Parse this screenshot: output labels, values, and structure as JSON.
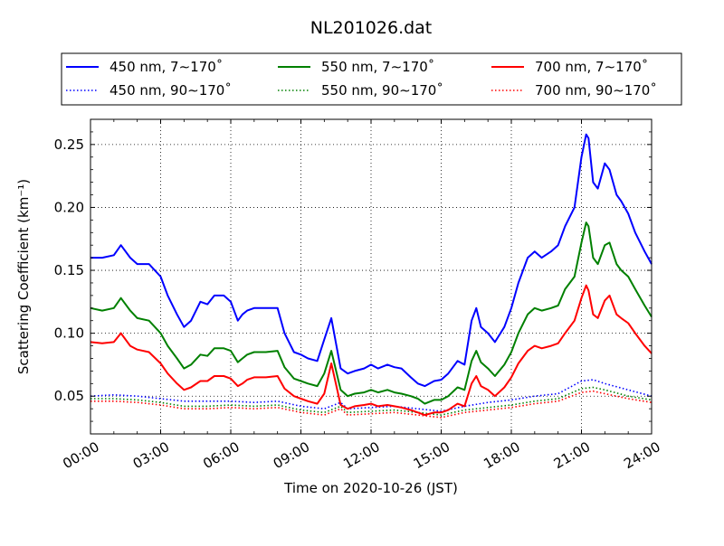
{
  "chart_data": {
    "type": "line",
    "title": "NL201026.dat",
    "xlabel": "Time on 2020-10-26 (JST)",
    "ylabel": "Scattering Coefficient (km⁻¹)",
    "x_unit": "hours",
    "xlim": [
      0,
      24
    ],
    "ylim": [
      0.02,
      0.27
    ],
    "x_ticks": [
      0,
      3,
      6,
      9,
      12,
      15,
      18,
      21,
      24
    ],
    "x_tick_labels": [
      "00:00",
      "03:00",
      "06:00",
      "09:00",
      "12:00",
      "15:00",
      "18:00",
      "21:00",
      "24:00"
    ],
    "y_ticks": [
      0.05,
      0.1,
      0.15,
      0.2,
      0.25
    ],
    "y_tick_labels": [
      "0.05",
      "0.10",
      "0.15",
      "0.20",
      "0.25"
    ],
    "grid": true,
    "legend_position": "top, above plot, 3 columns",
    "series": [
      {
        "name": "450 nm, 7∼170˚",
        "color": "#0000ff",
        "style": "solid",
        "x": [
          0,
          0.5,
          1,
          1.3,
          1.7,
          2,
          2.5,
          3,
          3.3,
          3.7,
          4,
          4.3,
          4.7,
          5,
          5.3,
          5.7,
          6,
          6.3,
          6.5,
          6.7,
          7,
          7.5,
          8,
          8.3,
          8.7,
          9,
          9.3,
          9.7,
          10,
          10.3,
          10.7,
          11,
          11.3,
          11.7,
          12,
          12.3,
          12.7,
          13,
          13.3,
          13.7,
          14,
          14.3,
          14.7,
          15,
          15.3,
          15.7,
          16,
          16.3,
          16.5,
          16.7,
          17,
          17.3,
          17.7,
          18,
          18.3,
          18.7,
          19,
          19.3,
          19.7,
          20,
          20.3,
          20.7,
          21,
          21.2,
          21.3,
          21.5,
          21.7,
          22,
          22.2,
          22.5,
          22.7,
          23,
          23.3,
          23.7,
          24
        ],
        "y": [
          0.16,
          0.16,
          0.162,
          0.17,
          0.16,
          0.155,
          0.155,
          0.145,
          0.13,
          0.115,
          0.105,
          0.11,
          0.125,
          0.123,
          0.13,
          0.13,
          0.125,
          0.11,
          0.115,
          0.118,
          0.12,
          0.12,
          0.12,
          0.1,
          0.085,
          0.083,
          0.08,
          0.078,
          0.095,
          0.112,
          0.072,
          0.068,
          0.07,
          0.072,
          0.075,
          0.072,
          0.075,
          0.073,
          0.072,
          0.065,
          0.06,
          0.058,
          0.062,
          0.063,
          0.068,
          0.078,
          0.075,
          0.11,
          0.12,
          0.105,
          0.1,
          0.093,
          0.105,
          0.12,
          0.14,
          0.16,
          0.165,
          0.16,
          0.165,
          0.17,
          0.185,
          0.2,
          0.24,
          0.258,
          0.255,
          0.22,
          0.215,
          0.235,
          0.23,
          0.21,
          0.205,
          0.195,
          0.18,
          0.165,
          0.155
        ]
      },
      {
        "name": "550 nm, 7∼170˚",
        "color": "#008000",
        "style": "solid",
        "x": [
          0,
          0.5,
          1,
          1.3,
          1.7,
          2,
          2.5,
          3,
          3.3,
          3.7,
          4,
          4.3,
          4.7,
          5,
          5.3,
          5.7,
          6,
          6.3,
          6.5,
          6.7,
          7,
          7.5,
          8,
          8.3,
          8.7,
          9,
          9.3,
          9.7,
          10,
          10.3,
          10.7,
          11,
          11.3,
          11.7,
          12,
          12.3,
          12.7,
          13,
          13.3,
          13.7,
          14,
          14.3,
          14.7,
          15,
          15.3,
          15.7,
          16,
          16.3,
          16.5,
          16.7,
          17,
          17.3,
          17.7,
          18,
          18.3,
          18.7,
          19,
          19.3,
          19.7,
          20,
          20.3,
          20.7,
          21,
          21.2,
          21.3,
          21.5,
          21.7,
          22,
          22.2,
          22.5,
          22.7,
          23,
          23.3,
          23.7,
          24
        ],
        "y": [
          0.12,
          0.118,
          0.12,
          0.128,
          0.118,
          0.112,
          0.11,
          0.1,
          0.09,
          0.08,
          0.072,
          0.075,
          0.083,
          0.082,
          0.088,
          0.088,
          0.086,
          0.077,
          0.08,
          0.083,
          0.085,
          0.085,
          0.086,
          0.073,
          0.064,
          0.062,
          0.06,
          0.058,
          0.068,
          0.086,
          0.055,
          0.05,
          0.052,
          0.053,
          0.055,
          0.053,
          0.055,
          0.053,
          0.052,
          0.05,
          0.048,
          0.044,
          0.047,
          0.047,
          0.05,
          0.057,
          0.055,
          0.078,
          0.086,
          0.077,
          0.072,
          0.066,
          0.075,
          0.085,
          0.1,
          0.115,
          0.12,
          0.118,
          0.12,
          0.122,
          0.135,
          0.145,
          0.172,
          0.188,
          0.185,
          0.16,
          0.155,
          0.17,
          0.172,
          0.155,
          0.15,
          0.145,
          0.135,
          0.122,
          0.113
        ]
      },
      {
        "name": "700 nm, 7∼170˚",
        "color": "#ff0000",
        "style": "solid",
        "x": [
          0,
          0.5,
          1,
          1.3,
          1.7,
          2,
          2.5,
          3,
          3.3,
          3.7,
          4,
          4.3,
          4.7,
          5,
          5.3,
          5.7,
          6,
          6.3,
          6.5,
          6.7,
          7,
          7.5,
          8,
          8.3,
          8.7,
          9,
          9.3,
          9.7,
          10,
          10.3,
          10.7,
          11,
          11.3,
          11.7,
          12,
          12.3,
          12.7,
          13,
          13.3,
          13.7,
          14,
          14.3,
          14.7,
          15,
          15.3,
          15.7,
          16,
          16.3,
          16.5,
          16.7,
          17,
          17.3,
          17.7,
          18,
          18.3,
          18.7,
          19,
          19.3,
          19.7,
          20,
          20.3,
          20.7,
          21,
          21.2,
          21.3,
          21.5,
          21.7,
          22,
          22.2,
          22.5,
          22.7,
          23,
          23.3,
          23.7,
          24
        ],
        "y": [
          0.093,
          0.092,
          0.093,
          0.1,
          0.09,
          0.087,
          0.085,
          0.076,
          0.068,
          0.06,
          0.055,
          0.057,
          0.062,
          0.062,
          0.066,
          0.066,
          0.064,
          0.058,
          0.06,
          0.063,
          0.065,
          0.065,
          0.066,
          0.056,
          0.05,
          0.048,
          0.046,
          0.044,
          0.052,
          0.076,
          0.043,
          0.04,
          0.042,
          0.043,
          0.044,
          0.042,
          0.043,
          0.042,
          0.041,
          0.039,
          0.037,
          0.035,
          0.037,
          0.037,
          0.039,
          0.044,
          0.042,
          0.06,
          0.066,
          0.058,
          0.055,
          0.05,
          0.057,
          0.065,
          0.076,
          0.086,
          0.09,
          0.088,
          0.09,
          0.092,
          0.1,
          0.11,
          0.128,
          0.138,
          0.134,
          0.115,
          0.112,
          0.126,
          0.13,
          0.115,
          0.112,
          0.108,
          0.1,
          0.09,
          0.084
        ]
      },
      {
        "name": "450 nm, 90∼170˚",
        "color": "#0000ff",
        "style": "dotted",
        "x": [
          0,
          1,
          2,
          3,
          4,
          5,
          6,
          7,
          8,
          9,
          10,
          10.7,
          11,
          12,
          13,
          14,
          15,
          16,
          17,
          18,
          19,
          20,
          21,
          21.5,
          22,
          23,
          24
        ],
        "y": [
          0.05,
          0.051,
          0.05,
          0.048,
          0.046,
          0.046,
          0.046,
          0.045,
          0.046,
          0.042,
          0.04,
          0.045,
          0.04,
          0.041,
          0.042,
          0.04,
          0.038,
          0.042,
          0.045,
          0.047,
          0.05,
          0.052,
          0.062,
          0.063,
          0.06,
          0.055,
          0.05
        ]
      },
      {
        "name": "550 nm, 90∼170˚",
        "color": "#008000",
        "style": "dotted",
        "x": [
          0,
          1,
          2,
          3,
          4,
          5,
          6,
          7,
          8,
          9,
          10,
          10.7,
          11,
          12,
          13,
          14,
          15,
          16,
          17,
          18,
          19,
          20,
          21,
          21.5,
          22,
          23,
          24
        ],
        "y": [
          0.048,
          0.048,
          0.047,
          0.045,
          0.042,
          0.042,
          0.043,
          0.042,
          0.043,
          0.039,
          0.037,
          0.042,
          0.037,
          0.038,
          0.039,
          0.037,
          0.035,
          0.039,
          0.041,
          0.043,
          0.046,
          0.048,
          0.056,
          0.057,
          0.055,
          0.05,
          0.047
        ]
      },
      {
        "name": "700 nm, 90∼170˚",
        "color": "#ff0000",
        "style": "dotted",
        "x": [
          0,
          1,
          2,
          3,
          4,
          5,
          6,
          7,
          8,
          9,
          10,
          10.7,
          11,
          12,
          13,
          14,
          15,
          16,
          17,
          18,
          19,
          20,
          21,
          21.5,
          22,
          23,
          24
        ],
        "y": [
          0.046,
          0.046,
          0.045,
          0.043,
          0.04,
          0.04,
          0.041,
          0.04,
          0.041,
          0.037,
          0.035,
          0.04,
          0.035,
          0.036,
          0.037,
          0.035,
          0.033,
          0.037,
          0.039,
          0.041,
          0.044,
          0.046,
          0.053,
          0.054,
          0.052,
          0.048,
          0.045
        ]
      }
    ]
  }
}
